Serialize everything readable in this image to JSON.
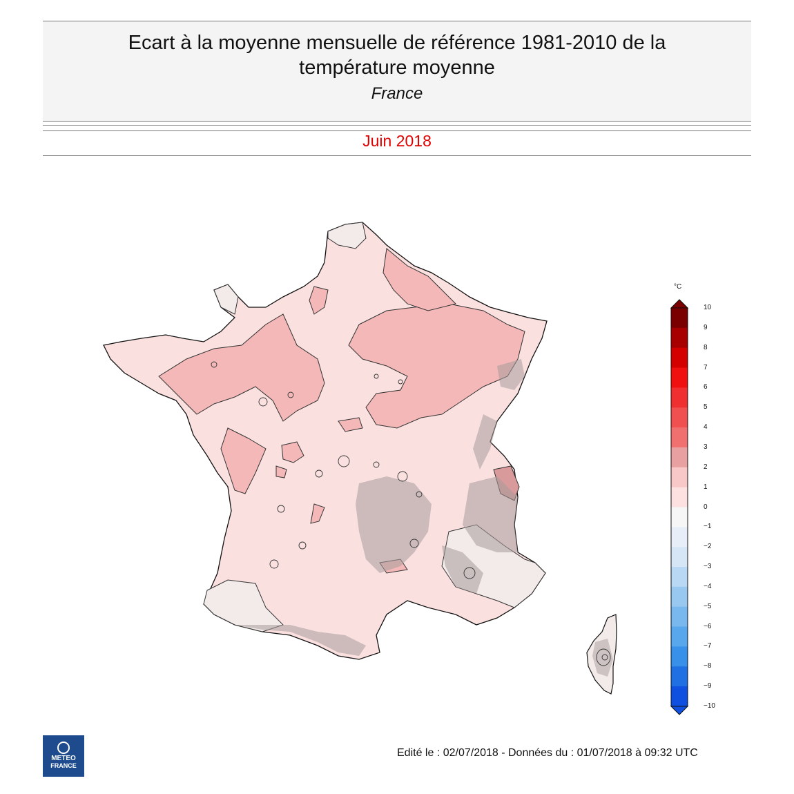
{
  "header": {
    "title_line1": "Ecart à la moyenne mensuelle de référence 1981-2010 de la",
    "title_line2": "température moyenne",
    "subtitle": "France",
    "period": "Juin 2018"
  },
  "colorbar": {
    "unit": "°C",
    "levels": [
      "10",
      "9",
      "8",
      "7",
      "6",
      "5",
      "4",
      "3",
      "2",
      "1",
      "0",
      "−1",
      "−2",
      "−3",
      "−4",
      "−5",
      "−6",
      "−7",
      "−8",
      "−9",
      "−10"
    ],
    "colors": [
      "#7a0000",
      "#a80000",
      "#d40000",
      "#f01010",
      "#f03030",
      "#f05050",
      "#f07070",
      "#e8a0a0",
      "#f8c8c8",
      "#fde0e0",
      "#f6f6f6",
      "#e8eef8",
      "#d6e6f6",
      "#b8d8f4",
      "#98c8f0",
      "#78b8ee",
      "#58a6ec",
      "#3890e8",
      "#2070e4",
      "#1050e0"
    ]
  },
  "map_colors": {
    "anomaly_1_2": "#fbe0e0",
    "anomaly_2_3": "#f4b8b8",
    "anomaly_0_1": "#f3eaea",
    "relief": "#a89c9c"
  },
  "logo": {
    "line1": "METEO",
    "line2": "FRANCE"
  },
  "footer": "Edité le : 02/07/2018 - Données du : 01/07/2018 à 09:32 UTC"
}
